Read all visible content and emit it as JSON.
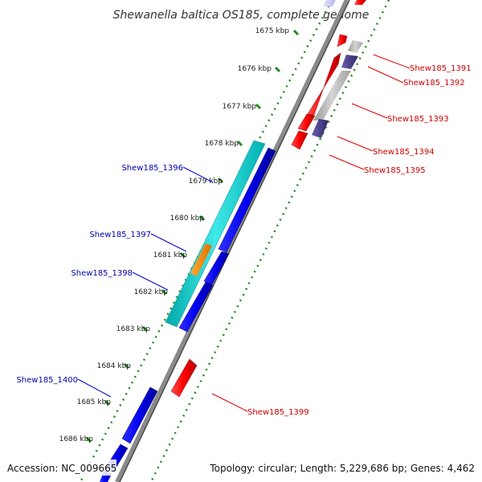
{
  "title": "Shewanella baltica OS185, complete genome",
  "footer": {
    "accession": "Accession: NC_009665",
    "stats": "Topology: circular; Length: 5,229,686 bp; Genes: 4,462"
  },
  "ticks": [
    "1675 kbp",
    "1676 kbp",
    "1677 kbp",
    "1678 kbp",
    "1679 kbp",
    "1680 kbp",
    "1681 kbp",
    "1682 kbp",
    "1683 kbp",
    "1684 kbp",
    "1685 kbp",
    "1686 kbp"
  ],
  "genes": {
    "forward": [
      "Shew185_1391",
      "Shew185_1392",
      "Shew185_1393",
      "Shew185_1394",
      "Shew185_1395",
      "Shew185_1399"
    ],
    "reverse": [
      "Shew185_1396",
      "Shew185_1397",
      "Shew185_1398",
      "Shew185_1400"
    ]
  },
  "colors": {
    "forward_cds": "#ff0000",
    "reverse_cds": "#0000ff",
    "rna": "#00cccc",
    "feature_orange": "#ff8c00",
    "feature_purple": "#4b3f8f",
    "feature_grey": "#b8b8b8",
    "backbone": "#808080",
    "tick_green": "#228b22",
    "forward_label": "#cc0000",
    "reverse_label": "#0000aa"
  }
}
